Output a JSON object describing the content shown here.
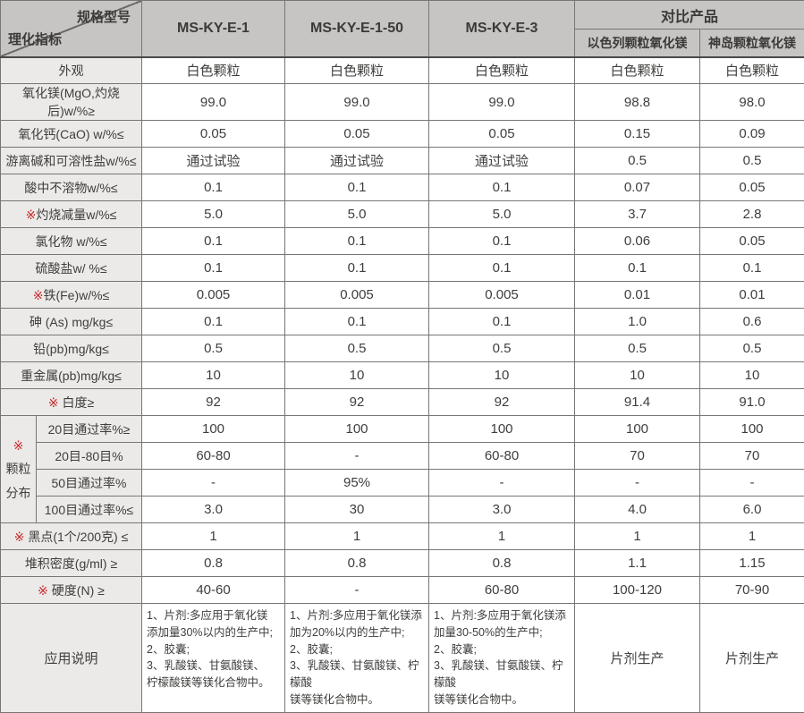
{
  "colors": {
    "header_bg": "#c6c5c3",
    "label_bg": "#ebeae8",
    "cell_bg": "#ffffff",
    "grid_border": "#787674",
    "outer_border": "#4c4a49",
    "text": "#3f3e3c",
    "marker_red": "#c8292c"
  },
  "header": {
    "corner_top": "规格型号",
    "corner_bottom": "理化指标",
    "models": [
      "MS-KY-E-1",
      "MS-KY-E-1-50",
      "MS-KY-E-3"
    ],
    "compare": {
      "title": "对比产品",
      "columns": [
        "以色列颗粒氧化镁",
        "神岛颗粒氧化镁"
      ]
    }
  },
  "rows": [
    {
      "marker": "",
      "label": "外观",
      "values": [
        "白色颗粒",
        "白色颗粒",
        "白色颗粒",
        "白色颗粒",
        "白色颗粒"
      ]
    },
    {
      "marker": "",
      "label": "氧化镁(MgO,灼烧后)w/%≥",
      "values": [
        "99.0",
        "99.0",
        "99.0",
        "98.8",
        "98.0"
      ]
    },
    {
      "marker": "",
      "label": "氧化钙(CaO) w/%≤",
      "values": [
        "0.05",
        "0.05",
        "0.05",
        "0.15",
        "0.09"
      ]
    },
    {
      "marker": "",
      "label": "游离碱和可溶性盐w/%≤",
      "values": [
        "通过试验",
        "通过试验",
        "通过试验",
        "0.5",
        "0.5"
      ]
    },
    {
      "marker": "",
      "label": "酸中不溶物w/%≤",
      "values": [
        "0.1",
        "0.1",
        "0.1",
        "0.07",
        "0.05"
      ]
    },
    {
      "marker": "※",
      "label": "灼烧减量w/%≤",
      "values": [
        "5.0",
        "5.0",
        "5.0",
        "3.7",
        "2.8"
      ]
    },
    {
      "marker": "",
      "label": "氯化物 w/%≤",
      "values": [
        "0.1",
        "0.1",
        "0.1",
        "0.06",
        "0.05"
      ]
    },
    {
      "marker": "",
      "label": "硫酸盐w/ %≤",
      "values": [
        "0.1",
        "0.1",
        "0.1",
        "0.1",
        "0.1"
      ]
    },
    {
      "marker": "※",
      "label": "铁(Fe)w/%≤",
      "values": [
        "0.005",
        "0.005",
        "0.005",
        "0.01",
        "0.01"
      ]
    },
    {
      "marker": "",
      "label": "砷 (As) mg/kg≤",
      "values": [
        "0.1",
        "0.1",
        "0.1",
        "1.0",
        "0.6"
      ]
    },
    {
      "marker": "",
      "label": "铅(pb)mg/kg≤",
      "values": [
        "0.5",
        "0.5",
        "0.5",
        "0.5",
        "0.5"
      ]
    },
    {
      "marker": "",
      "label": "重金属(pb)mg/kg≤",
      "values": [
        "10",
        "10",
        "10",
        "10",
        "10"
      ]
    },
    {
      "marker": "※",
      "label": " 白度≥",
      "values": [
        "92",
        "92",
        "92",
        "91.4",
        "91.0"
      ]
    }
  ],
  "particle_group": {
    "marker": "※",
    "label_lines": [
      "颗粒",
      "分布"
    ],
    "rows": [
      {
        "label": "20目通过率%≥",
        "values": [
          "100",
          "100",
          "100",
          "100",
          "100"
        ]
      },
      {
        "label": "20目-80目%",
        "values": [
          "60-80",
          "-",
          "60-80",
          "70",
          "70"
        ]
      },
      {
        "label": "50目通过率%",
        "values": [
          "-",
          "95%",
          "-",
          "-",
          "-"
        ]
      },
      {
        "label": "100目通过率%≤",
        "values": [
          "3.0",
          "30",
          "3.0",
          "4.0",
          "6.0"
        ]
      }
    ]
  },
  "rows_after": [
    {
      "marker": "※",
      "label": " 黑点(1个/200克) ≤",
      "values": [
        "1",
        "1",
        "1",
        "1",
        "1"
      ]
    },
    {
      "marker": "",
      "label": "堆积密度(g/ml) ≥",
      "values": [
        "0.8",
        "0.8",
        "0.8",
        "1.1",
        "1.15"
      ]
    },
    {
      "marker": "※",
      "label": " 硬度(N) ≥",
      "values": [
        "40-60",
        "-",
        "60-80",
        "100-120",
        "70-90"
      ]
    }
  ],
  "application": {
    "label": "应用说明",
    "values": [
      "1、片剂:多应用于氧化镁\n添加量30%以内的生产中;\n2、胶囊;\n3、乳酸镁、甘氨酸镁、\n柠檬酸镁等镁化合物中。",
      "1、片剂:多应用于氧化镁添\n加为20%以内的生产中;\n2、胶囊;\n3、乳酸镁、甘氨酸镁、柠檬酸\n镁等镁化合物中。",
      "1、片剂:多应用于氧化镁添\n加量30-50%的生产中;\n2、胶囊;\n3、乳酸镁、甘氨酸镁、柠檬酸\n镁等镁化合物中。",
      "片剂生产",
      "片剂生产"
    ]
  }
}
